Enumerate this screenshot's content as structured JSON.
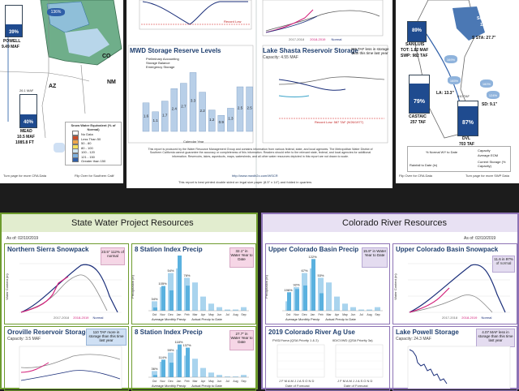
{
  "top": {
    "left_map": {
      "region_labels": [
        "CO",
        "NM",
        "AZ"
      ],
      "powell": {
        "pct": "39%",
        "name": "POWELL",
        "taf": "9.49 MAF"
      },
      "mead": {
        "pct": "40%",
        "name": "MEAD",
        "taf": "10.5 MAF",
        "elev": "1085.8 FT",
        "cap": "26.1 MAF"
      },
      "map_pct": "136%",
      "legend_title": "Snow Water Equivalent (% of Normal)",
      "legend_items": [
        "No Data",
        "Less Than 50",
        "50 - 80",
        "80 - 100",
        "100 - 120",
        "121 - 150",
        "Greater than 150"
      ],
      "legend_colors": [
        "#ffffff",
        "#c94c28",
        "#f0a64a",
        "#f5e05e",
        "#cfe6f1",
        "#7fb2df",
        "#2f5fa8"
      ],
      "footer": "Turn page for more CRA Data",
      "flip": "Flip Over for Southern Calif"
    },
    "center": {
      "record_low": "Record Low",
      "mwd_title": "MWD Storage Reserve Levels",
      "mwd_legend": [
        "Preliminary Accounting",
        "Storage Balance",
        "Emergency Storage"
      ],
      "mwd_values": [
        "1.6",
        "1.1",
        "1.7",
        "2.4",
        "2.7",
        "3.3",
        "2.2",
        "1.2",
        "0.9",
        "1.3",
        "2.5",
        "2.5"
      ],
      "mwd_xlabel": "Calendar Year",
      "mwd_ylabel": "Million Acre-Feet",
      "shasta_title": "Lake Shasta Reservoir Storage",
      "shasta_cap": "Capacity: 4.55 MAF",
      "shasta_callout": "265 TAF less in storage than this time last year",
      "shasta_record": "Record Low: 587 TAF (9/26/1977)",
      "shasta_ylabel": "Million Acre-Feet",
      "upper_legend": [
        "2017-2018",
        "2018-2019",
        "Normal"
      ],
      "disclaimer": "This report is produced by the Water Resource Management Group and contains information from various federal, state, and local agencies. The Metropolitan Water District of Southern California cannot guarantee the accuracy or completeness of this information. Readers should refer to the relevant state, federal, and local agencies for additional information. Reservoirs, lakes, aqueducts, maps, watersheds, and all other water resources depicted in this report are not drawn to scale.",
      "url": "http://www.mwdh2o.com/WSCR",
      "print_note": "This report is best printed double sided on legal size paper (8.5\" x 14\") and folded in quarters"
    },
    "right_map": {
      "socal_label": "Southern Sierra",
      "socal_pct": "120%",
      "sta": "S STA: 27.7\"",
      "san_luis": {
        "pct": "89%",
        "name": "SAN LUIS",
        "tot": "TOT: 1.82 MAF",
        "swp": "SWP: 982 TAF"
      },
      "castaic": {
        "pct": "79%",
        "name": "CASTAIC",
        "taf": "257 TAF"
      },
      "dvl": {
        "pct": "87%",
        "name": "DVL",
        "taf": "703 TAF",
        "cap": "810 TAF"
      },
      "la": "LA: 13.3\"",
      "sd": "SD: 9.1\"",
      "pcts": [
        "169%",
        "165%",
        "160%",
        "124%"
      ],
      "legend": [
        "% Normal WY to Date",
        "Rainfall to Date (in)",
        "Capacity",
        "Average EOM",
        "Current Storage (% Capacity)"
      ],
      "footer": "Flip Over for CRA Data",
      "flip": "Turn page for more SWP Data"
    }
  },
  "swp": {
    "header": "State Water Project Resources",
    "as_of": "As of: 02/10/2019",
    "snowpack": {
      "title": "Northern Sierra Snowpack",
      "callout": "23.5\" 112% of normal",
      "ylabel": "Water Content (in)",
      "legend": [
        "2017-2018",
        "2018-2019",
        "Normal"
      ]
    },
    "precip1": {
      "title": "8 Station Index Precip",
      "callout": "32.1\" in Water Year to Date",
      "ylabel": "Precipitation (in)",
      "months": [
        "Oct",
        "Nov",
        "Dec",
        "Jan",
        "Feb",
        "Mar",
        "Apr",
        "May",
        "Jun",
        "Jul",
        "Aug",
        "Sep"
      ],
      "pct_labels": [
        "34%",
        "105%",
        "54%",
        "148%",
        "76%"
      ],
      "legend": [
        "Average Monthly Precip",
        "Actual Precip to Date"
      ]
    },
    "oroville": {
      "title": "Oroville Reservoir Storage",
      "cap": "Capacity: 3.5 MAF",
      "callout": "110 TAF more in storage than this time last year",
      "ylabel": "Million Acre-Feet"
    },
    "precip2": {
      "title": "8 Station Index Precip",
      "callout": "27.7\" in Water Year to Date",
      "ylabel": "Precipitation (in)",
      "pct_labels": [
        "36%",
        "114%",
        "59%",
        "118%",
        "137%"
      ],
      "legend": [
        "Average Monthly Precip",
        "Actual Precip to Date"
      ]
    }
  },
  "cra": {
    "header": "Colorado River Resources",
    "as_of": "As of: 02/10/2019",
    "ucb_precip": {
      "title": "Upper Colorado Basin Precip",
      "callout": "15.9\" in Water Year to Date",
      "ylabel": "Precipitation (in)",
      "pct_labels": [
        "196%",
        "92%",
        "67%",
        "122%",
        "53%"
      ],
      "legend": [
        "Average Monthly Precip",
        "Actual Precip to Date"
      ]
    },
    "ucb_snow": {
      "title": "Upper Colorado Basin Snowpack",
      "callout": "11.6 in 97% of normal",
      "ylabel": "Water Content (in)",
      "legend": [
        "2017-2018",
        "2018-2019",
        "Normal"
      ]
    },
    "ag_use": {
      "title": "2019 Colorado River Ag Use",
      "left_label": "PVID/Yuma (QSA Priority 1 & 2)",
      "right_label": "IID/CVWD (QSA Priority 3a)",
      "ylabel": "Thousand Acre-Feet",
      "months": "J F M A M J J A S O N D",
      "xlabel": "Date of Forecast"
    },
    "powell": {
      "title": "Lake Powell Storage",
      "cap": "Capacity: 24.3 MAF",
      "callout": "4.07 MAF less in storage than this time last year",
      "ylabel": "Million Acre-Feet"
    }
  },
  "colors": {
    "swp_green": "#6d9b2d",
    "cra_purple": "#8d73b5",
    "title_blue": "#1f3f6f",
    "bar_blue": "#5ab1df",
    "bar_avg": "#a9d4ee",
    "trace_pink": "#d21f7a",
    "trace_navy": "#1b2f7a"
  }
}
